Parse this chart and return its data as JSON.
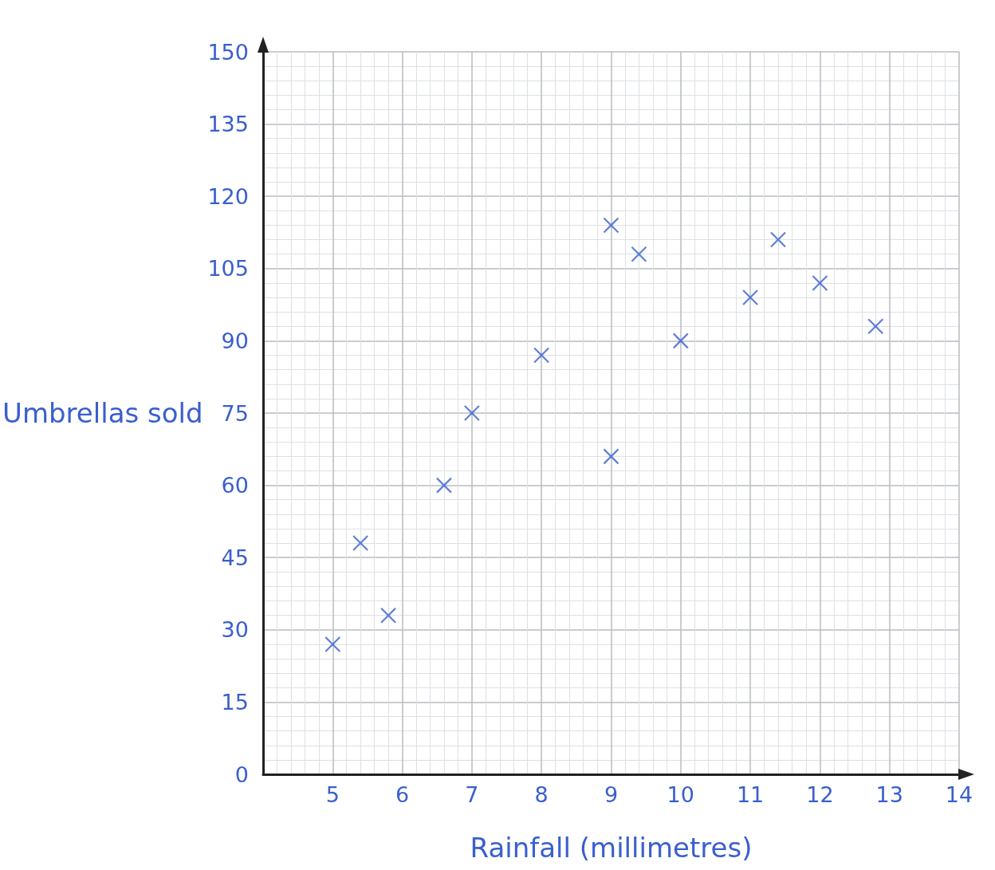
{
  "chart_data": {
    "type": "scatter",
    "xlabel": "Rainfall (millimetres)",
    "ylabel": "Umbrellas sold",
    "x": [
      5.0,
      5.4,
      5.8,
      6.6,
      7.0,
      8.0,
      9.0,
      9.0,
      9.4,
      10.0,
      11.0,
      11.4,
      12.0,
      12.8
    ],
    "series": [
      {
        "color": "#3a5fcd",
        "values": [
          27,
          48,
          33,
          60,
          75,
          87,
          114,
          66,
          108,
          90,
          99,
          111,
          102,
          93
        ]
      }
    ],
    "xlim": [
      4,
      14
    ],
    "xticks": [
      5,
      6,
      7,
      8,
      9,
      10,
      11,
      12,
      13,
      14
    ],
    "ylim": [
      0,
      150
    ],
    "yticks": [
      0,
      15,
      30,
      45,
      60,
      75,
      90,
      105,
      120,
      135,
      150
    ],
    "grid": true,
    "marker": "cross"
  }
}
